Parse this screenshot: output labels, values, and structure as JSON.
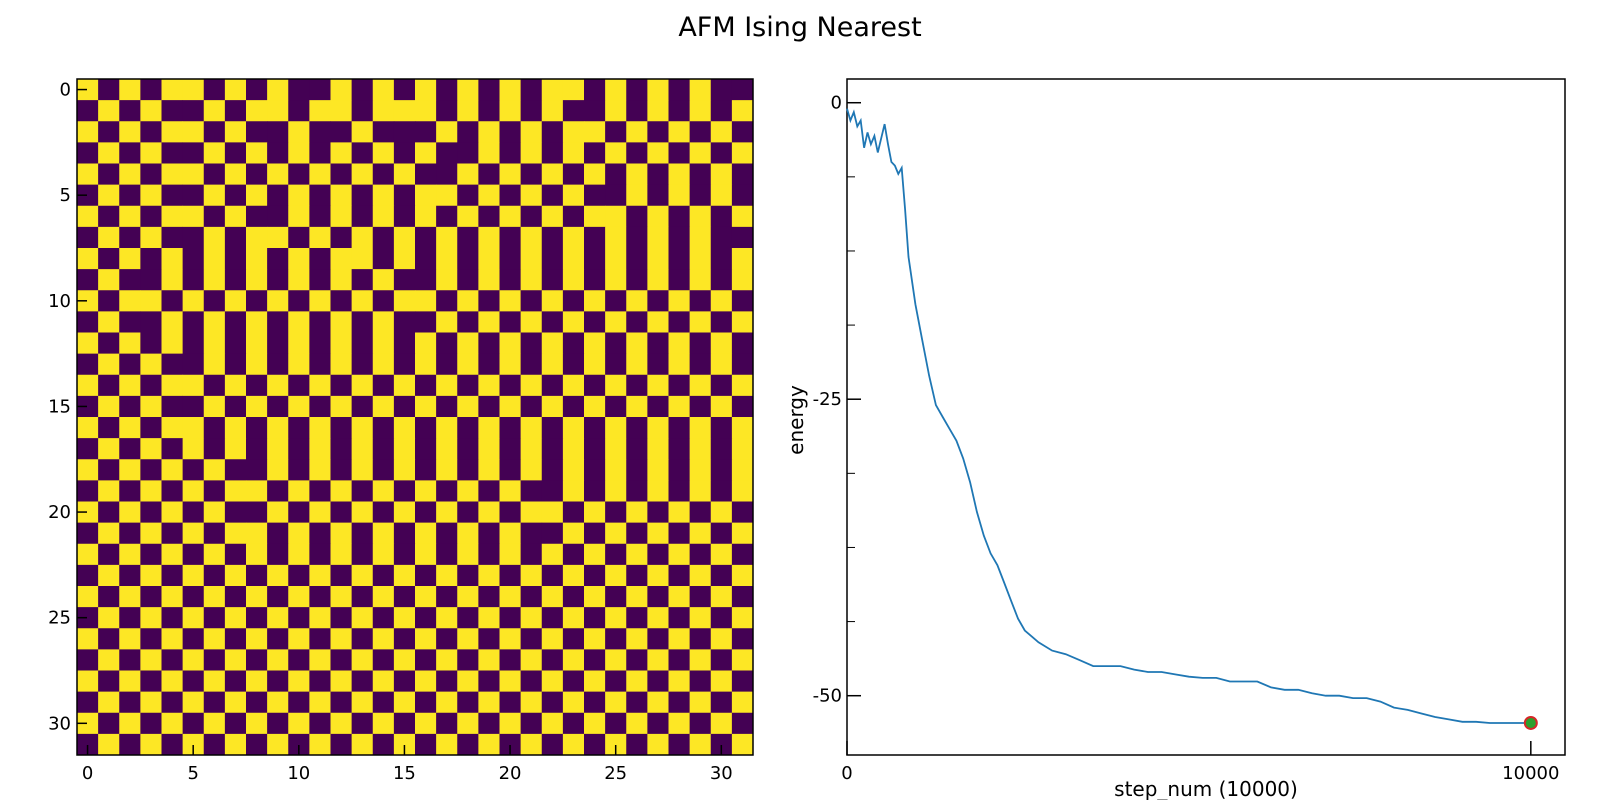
{
  "figure": {
    "title": "AFM Ising Nearest"
  },
  "chart_data": [
    {
      "type": "heatmap",
      "title": "",
      "xlabel": "",
      "ylabel": "",
      "rows": 32,
      "cols": 32,
      "xlim": [
        -0.5,
        31.5
      ],
      "ylim": [
        31.5,
        -0.5
      ],
      "x_ticks": [
        0,
        5,
        10,
        15,
        20,
        25,
        30
      ],
      "y_ticks": [
        0,
        5,
        10,
        15,
        20,
        25,
        30
      ],
      "colormap": {
        "-1": "#440154",
        "1": "#fde725"
      },
      "values": [
        "YPYPYYPYPYPPYPYPYPYPYPYYPYPYPYPP",
        "PYPYPPYPYYPYYPYYYPYPYPYPPYPYPYPY",
        "YPYPYYPYPPYPPYPPPYPYPYPYYPYPYPYP",
        "PYPYPPYPYPYPYPYPYPPYPYPYPYPYPYPY",
        "YPYPYYPYPYPYPYPYPPYPYPYPYPYPYPYP",
        "PYPYPPYPYPYPYPYPYYPYPYPYPPYPYPYP",
        "YPYPYYPYPPYPYPYPYPYPYPYPYYPYPYPY",
        "PYPYPPYPYYPYPYPYPYPYPYPYPYPYPYPP",
        "YPYPYPYPYPYPYYPYPYPYPYPYPYPYPYPY",
        "PYPPYPYPYPYPYPYPPYPYPYPYPYPYPYPY",
        "YPYYPYPYPYPYPYPYYPYPYPYPYPYPYPYP",
        "PYPPYPYPYPYPYPYPPYPYPYPYPYPYPYPY",
        "YPYPYPYPYPYPYPYPYPYPYPYPYPYPYPYP",
        "PYPYPPYPYPYPYPYPYPYPYPYPYPYPYPYP",
        "YPYPYYPYPYPYPYPYPYPYPYPYPYPYPYPY",
        "PYPYPPYPYPYPYPYPYPYPYPYPYPYPYPYP",
        "YPYPYYPYPYPYPYPYPYPYPYPYPYPYPYPY",
        "PYPYPYPYPYPYPYPYPYPYPYPYPYPYPYPY",
        "YPYPYPYPPYPYPYPYPYPYPYPYPYPYPYPY",
        "PYPYPYPYYPYPYPYPYPYPYPPYPYPYPYPY",
        "YPYPYPYPPYPYPYPYPYPYPYYPYPYPYPYP",
        "PYPYPYPYYPYPYPYPYPYPYPPYPYPYPYPY",
        "YPYPYPYPYPYPYPYPYPYPYPYPYPYPYPYP",
        "PYPYPYPYPYPYPYPYPYPYPYPYPYPYPYPY",
        "YPYPYPYPYPYPYPYPYPYPYPYPYPYPYPYP",
        "PYPYPYPYPYPYPYPYPYPYPYPYPYPYPYPY",
        "YPYPYPYPYPYPYPYPYPYPYPYPYPYPYPYP",
        "PYPYPYPYPYPYPYPYPYPYPYPYPYPYPYPY",
        "YPYPYPYPYPYPYPYPYPYPYPYPYPYPYPYP",
        "PYPYPYPYPYPYPYPYPYPYPYPYPYPYPYPY",
        "YPYPYPYPYPYPYPYPYPYPYPYPYPYPYPYP",
        "PYPYPYPYPYPYPYPYPYPYPYPYPYPYPYPY"
      ]
    },
    {
      "type": "line",
      "title": "",
      "xlabel": "step_num (10000)",
      "ylabel": "energy",
      "xlim": [
        0,
        10500
      ],
      "ylim": [
        -55,
        2
      ],
      "x_ticks": [
        0,
        10000
      ],
      "y_ticks": [
        0,
        -25,
        -50
      ],
      "y_minor_ticks": [
        -6.25,
        -12.5,
        -18.75,
        -31.25,
        -37.5,
        -43.75
      ],
      "grid": false,
      "series": [
        {
          "color": "#1f77b4",
          "x": [
            0,
            50,
            100,
            150,
            200,
            250,
            300,
            350,
            400,
            450,
            500,
            550,
            600,
            650,
            700,
            750,
            800,
            850,
            900,
            1000,
            1100,
            1200,
            1300,
            1400,
            1500,
            1600,
            1700,
            1800,
            1900,
            2000,
            2100,
            2200,
            2300,
            2400,
            2500,
            2600,
            2800,
            3000,
            3200,
            3400,
            3600,
            3800,
            4000,
            4200,
            4400,
            4600,
            4800,
            5000,
            5200,
            5400,
            5600,
            5800,
            6000,
            6200,
            6400,
            6600,
            6800,
            7000,
            7200,
            7400,
            7600,
            7800,
            8000,
            8200,
            8400,
            8600,
            8800,
            9000,
            9200,
            9400,
            9600,
            9800,
            10000
          ],
          "y": [
            -0.5,
            -1.5,
            -0.8,
            -2.0,
            -1.5,
            -3.8,
            -2.5,
            -3.5,
            -2.8,
            -4.2,
            -3.0,
            -1.8,
            -3.5,
            -5.0,
            -5.3,
            -6.0,
            -5.5,
            -9.0,
            -13.0,
            -17.0,
            -20.0,
            -23.0,
            -25.5,
            -26.5,
            -27.5,
            -28.5,
            -30.0,
            -32.0,
            -34.5,
            -36.5,
            -38.0,
            -39.0,
            -40.5,
            -42.0,
            -43.5,
            -44.5,
            -45.5,
            -46.2,
            -46.5,
            -47.0,
            -47.5,
            -47.5,
            -47.5,
            -47.8,
            -48.0,
            -48.0,
            -48.2,
            -48.4,
            -48.5,
            -48.5,
            -48.8,
            -48.8,
            -48.8,
            -49.3,
            -49.5,
            -49.5,
            -49.8,
            -50.0,
            -50.0,
            -50.2,
            -50.2,
            -50.5,
            -51.0,
            -51.2,
            -51.5,
            -51.8,
            -52.0,
            -52.2,
            -52.2,
            -52.3,
            -52.3,
            -52.3,
            -52.3
          ]
        }
      ],
      "end_marker": {
        "x": 10000,
        "y": -52.3,
        "face_color": "#2ca02c",
        "edge_color": "#d62728"
      }
    }
  ]
}
